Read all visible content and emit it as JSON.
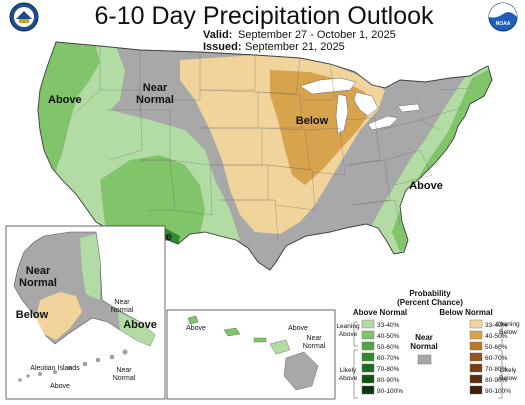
{
  "header": {
    "title": "6-10 Day Precipitation Outlook",
    "valid_label": "Valid:",
    "valid_value": "September 27 - October 1, 2025",
    "issued_label": "Issued:",
    "issued_value": "September 21, 2025"
  },
  "logos": {
    "left": "seal-icon",
    "right": "noaa-logo-icon",
    "noaa_text": "NOAA"
  },
  "regions": {
    "west_above": "Above",
    "near_normal_line1": "Near",
    "near_normal_line2": "Normal",
    "sw_above": "Above",
    "midwest_below": "Below",
    "east_above": "Above"
  },
  "alaska": {
    "near_line1": "Near",
    "near_line2": "Normal",
    "below": "Below",
    "near2_line1": "Near",
    "near2_line2": "Normal",
    "above": "Above",
    "aleutian": "Aleutian Islands",
    "aleutian_near1": "Near",
    "aleutian_near2": "Normal",
    "aleutian_above": "Above"
  },
  "hawaii": {
    "above": "Above",
    "near_line1": "Near",
    "near_line2": "Normal",
    "above2": "Above"
  },
  "legend": {
    "title_line1": "Probability",
    "title_line2": "(Percent Chance)",
    "above_header": "Above Normal",
    "below_header": "Below Normal",
    "near_line1": "Near",
    "near_line2": "Normal",
    "leaning_above_1": "Leaning",
    "leaning_above_2": "Above",
    "likely_above_1": "Likely",
    "likely_above_2": "Above",
    "leaning_below_1": "Leaning",
    "leaning_below_2": "Below",
    "likely_below_1": "Likely",
    "likely_below_2": "Below",
    "above_bins": [
      {
        "label": "33-40%",
        "color": "#b3dca4"
      },
      {
        "label": "40-50%",
        "color": "#80c56a"
      },
      {
        "label": "50-60%",
        "color": "#4ea845"
      },
      {
        "label": "60-70%",
        "color": "#2e8b2c"
      },
      {
        "label": "70-80%",
        "color": "#1c6e1d"
      },
      {
        "label": "80-90%",
        "color": "#0f5214"
      },
      {
        "label": "90-100%",
        "color": "#06380b"
      }
    ],
    "below_bins": [
      {
        "label": "33-40%",
        "color": "#f1d49b"
      },
      {
        "label": "40-50%",
        "color": "#d8a34d"
      },
      {
        "label": "50-60%",
        "color": "#b97a2b"
      },
      {
        "label": "60-70%",
        "color": "#96561d"
      },
      {
        "label": "70-80%",
        "color": "#773f15"
      },
      {
        "label": "80-90%",
        "color": "#5c2d0e"
      },
      {
        "label": "90-100%",
        "color": "#421d07"
      }
    ],
    "near_color": "#a8a8a8"
  },
  "colors": {
    "near": "#a8a8a8",
    "above_1": "#b3dca4",
    "above_2": "#80c56a",
    "above_3": "#4ea845",
    "above_4": "#2e8b2c",
    "below_1": "#f1d49b",
    "below_2": "#d8a34d",
    "water": "#ffffff"
  }
}
